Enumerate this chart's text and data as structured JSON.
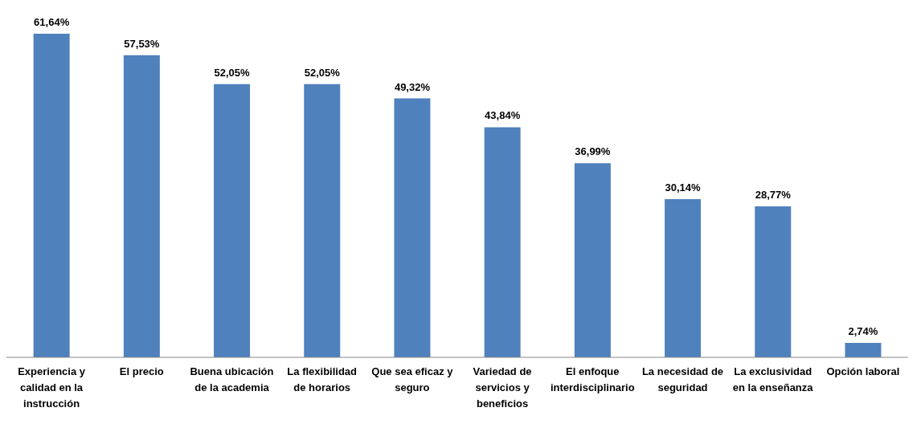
{
  "chart_data": {
    "type": "bar",
    "categories": [
      "Experiencia y calidad en la instrucción",
      "El precio",
      "Buena ubicación de la academia",
      "La flexibilidad de horarios",
      "Que sea eficaz y seguro",
      "Variedad de servicios y beneficios",
      "El enfoque interdisciplinario",
      "La necesidad de seguridad",
      "La exclusividad en la enseñanza",
      "Opción laboral"
    ],
    "values": [
      61.64,
      57.53,
      52.05,
      52.05,
      49.32,
      43.84,
      36.99,
      30.14,
      28.77,
      2.74
    ],
    "value_labels": [
      "61,64%",
      "57,53%",
      "52,05%",
      "52,05%",
      "49,32%",
      "43,84%",
      "36,99%",
      "30,14%",
      "28,77%",
      "2,74%"
    ],
    "color": "#4f81bd"
  }
}
